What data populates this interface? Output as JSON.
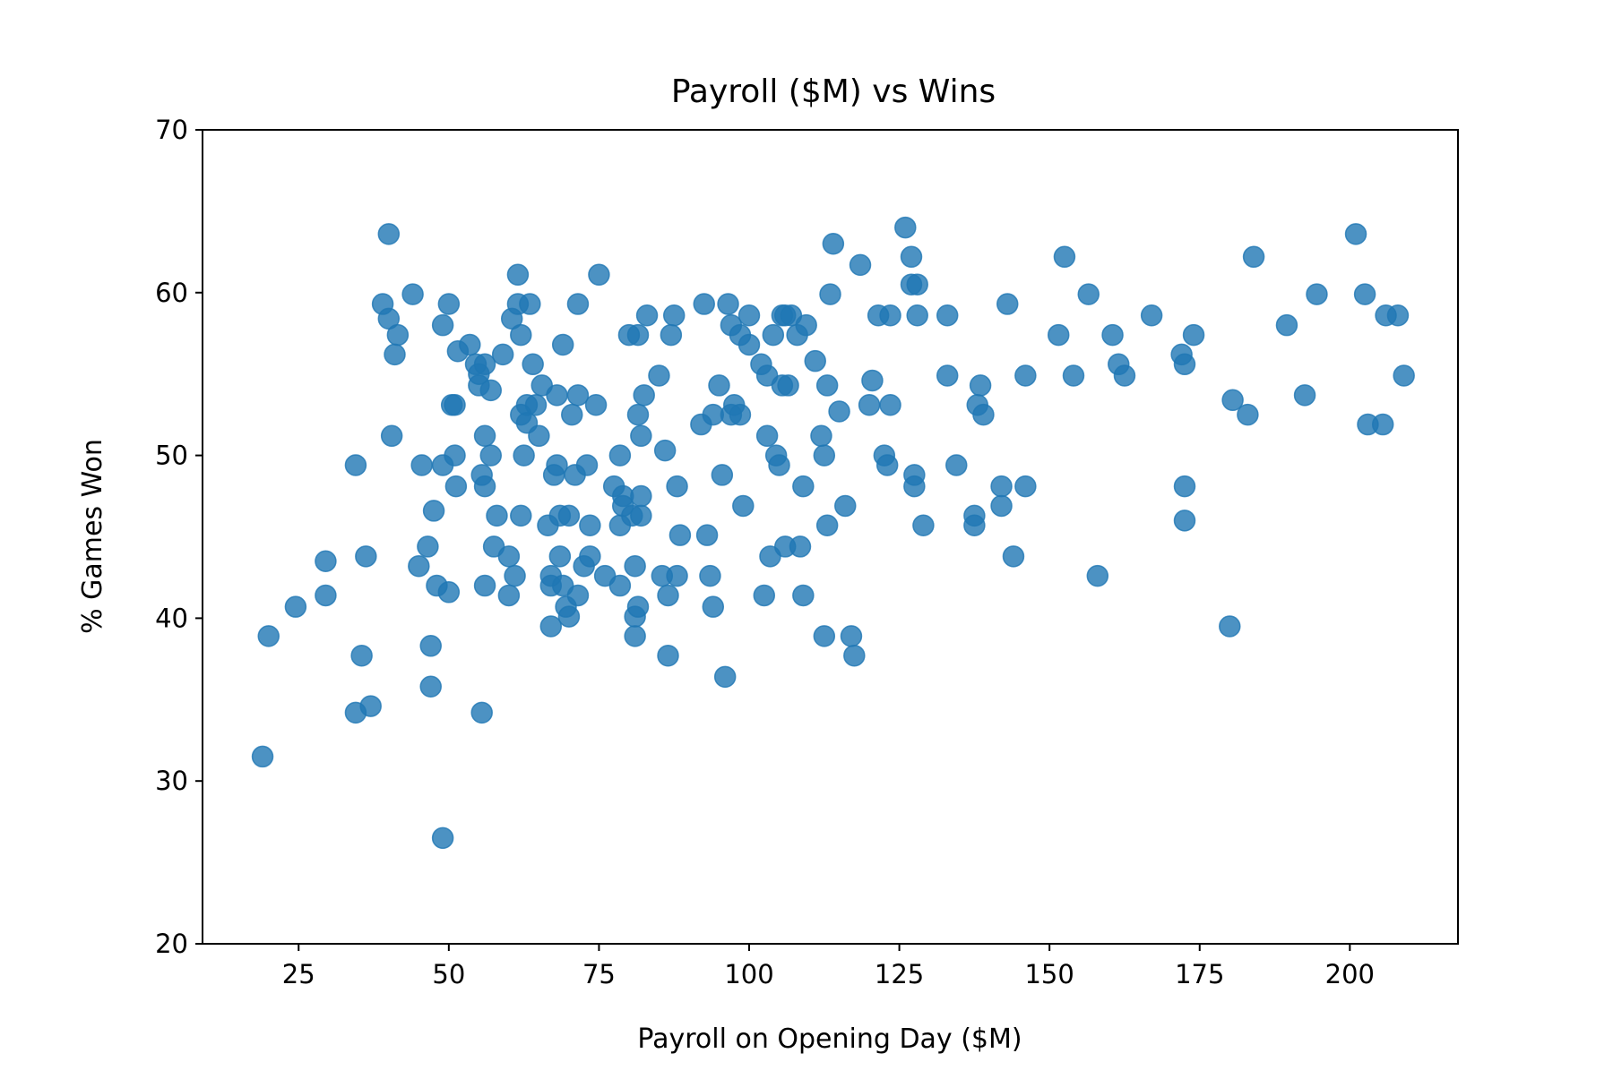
{
  "chart_data": {
    "type": "scatter",
    "title": "Payroll ($M) vs Wins",
    "xlabel": "Payroll on Opening Day ($M)",
    "ylabel": "% Games Won",
    "xlim": [
      9,
      218
    ],
    "ylim": [
      20,
      70
    ],
    "xticks": [
      25,
      50,
      75,
      100,
      125,
      150,
      175,
      200
    ],
    "yticks": [
      20,
      30,
      40,
      50,
      60,
      70
    ],
    "grid": false,
    "colors": {
      "points": "#1f77b4"
    },
    "points": [
      [
        19,
        31.5
      ],
      [
        20,
        38.9
      ],
      [
        24.5,
        40.7
      ],
      [
        29.5,
        43.5
      ],
      [
        29.5,
        41.4
      ],
      [
        34.5,
        49.4
      ],
      [
        34.5,
        34.2
      ],
      [
        35.5,
        37.7
      ],
      [
        36.2,
        43.8
      ],
      [
        37,
        34.6
      ],
      [
        39,
        59.3
      ],
      [
        40,
        58.4
      ],
      [
        40,
        63.6
      ],
      [
        40.5,
        51.2
      ],
      [
        41,
        56.2
      ],
      [
        41.5,
        57.4
      ],
      [
        44,
        59.9
      ],
      [
        45,
        43.2
      ],
      [
        45.5,
        49.4
      ],
      [
        46.5,
        44.4
      ],
      [
        47,
        38.3
      ],
      [
        47,
        35.8
      ],
      [
        47.5,
        46.6
      ],
      [
        48,
        42.0
      ],
      [
        49,
        49.4
      ],
      [
        49,
        58.0
      ],
      [
        49,
        26.5
      ],
      [
        50,
        41.6
      ],
      [
        50,
        59.3
      ],
      [
        50.5,
        53.1
      ],
      [
        51,
        53.1
      ],
      [
        51,
        50.0
      ],
      [
        51.2,
        48.1
      ],
      [
        51.5,
        56.4
      ],
      [
        53.5,
        56.8
      ],
      [
        54.5,
        55.6
      ],
      [
        55,
        55.0
      ],
      [
        55,
        54.3
      ],
      [
        55.5,
        34.2
      ],
      [
        55.5,
        48.8
      ],
      [
        56,
        48.1
      ],
      [
        56,
        51.2
      ],
      [
        56,
        55.6
      ],
      [
        56,
        42.0
      ],
      [
        57,
        54.0
      ],
      [
        57,
        50.0
      ],
      [
        57.5,
        44.4
      ],
      [
        58,
        46.3
      ],
      [
        59,
        56.2
      ],
      [
        60,
        43.8
      ],
      [
        60,
        41.4
      ],
      [
        60.5,
        58.4
      ],
      [
        61,
        42.6
      ],
      [
        61.5,
        61.1
      ],
      [
        61.5,
        59.3
      ],
      [
        62,
        57.4
      ],
      [
        62,
        52.5
      ],
      [
        62,
        46.3
      ],
      [
        62.5,
        50.0
      ],
      [
        63,
        52.0
      ],
      [
        63,
        53.1
      ],
      [
        63.5,
        59.3
      ],
      [
        64,
        55.6
      ],
      [
        64.5,
        53.1
      ],
      [
        65,
        51.2
      ],
      [
        65.5,
        54.3
      ],
      [
        66.5,
        45.7
      ],
      [
        67,
        42.6
      ],
      [
        67,
        42.0
      ],
      [
        67,
        39.5
      ],
      [
        67.5,
        48.8
      ],
      [
        68,
        49.4
      ],
      [
        68,
        53.7
      ],
      [
        68.5,
        46.3
      ],
      [
        68.5,
        43.8
      ],
      [
        69,
        56.8
      ],
      [
        69,
        42.0
      ],
      [
        69.5,
        40.7
      ],
      [
        70,
        46.3
      ],
      [
        70,
        40.1
      ],
      [
        70.5,
        52.5
      ],
      [
        71,
        48.8
      ],
      [
        71.5,
        53.7
      ],
      [
        71.5,
        41.4
      ],
      [
        71.5,
        59.3
      ],
      [
        72.5,
        43.2
      ],
      [
        73,
        49.4
      ],
      [
        73.5,
        45.7
      ],
      [
        73.5,
        43.8
      ],
      [
        74.5,
        53.1
      ],
      [
        75,
        61.1
      ],
      [
        76,
        42.6
      ],
      [
        77.5,
        48.1
      ],
      [
        78.5,
        42.0
      ],
      [
        78.5,
        50.0
      ],
      [
        78.5,
        45.7
      ],
      [
        79,
        47.5
      ],
      [
        79,
        46.9
      ],
      [
        80,
        57.4
      ],
      [
        80.5,
        46.3
      ],
      [
        81,
        43.2
      ],
      [
        81,
        40.1
      ],
      [
        81,
        38.9
      ],
      [
        81.5,
        57.4
      ],
      [
        81.5,
        52.5
      ],
      [
        81.5,
        40.7
      ],
      [
        82,
        51.2
      ],
      [
        82,
        46.3
      ],
      [
        82,
        47.5
      ],
      [
        82.5,
        53.7
      ],
      [
        83,
        58.6
      ],
      [
        85,
        54.9
      ],
      [
        85.5,
        42.6
      ],
      [
        86,
        50.3
      ],
      [
        86.5,
        41.4
      ],
      [
        86.5,
        37.7
      ],
      [
        87,
        57.4
      ],
      [
        87.5,
        58.6
      ],
      [
        88,
        48.1
      ],
      [
        88,
        42.6
      ],
      [
        88.5,
        45.1
      ],
      [
        92,
        51.9
      ],
      [
        92.5,
        59.3
      ],
      [
        93,
        45.1
      ],
      [
        93.5,
        42.6
      ],
      [
        94,
        52.5
      ],
      [
        94,
        40.7
      ],
      [
        95,
        54.3
      ],
      [
        95.5,
        48.8
      ],
      [
        96,
        36.4
      ],
      [
        96.5,
        59.3
      ],
      [
        97,
        58.0
      ],
      [
        97,
        52.5
      ],
      [
        97.5,
        53.1
      ],
      [
        98.5,
        57.4
      ],
      [
        98.5,
        52.5
      ],
      [
        99,
        46.9
      ],
      [
        100,
        58.6
      ],
      [
        100,
        56.8
      ],
      [
        102,
        55.6
      ],
      [
        102.5,
        41.4
      ],
      [
        103,
        51.2
      ],
      [
        103,
        54.9
      ],
      [
        103.5,
        43.8
      ],
      [
        104,
        57.4
      ],
      [
        104.5,
        50.0
      ],
      [
        105,
        49.4
      ],
      [
        105.5,
        58.6
      ],
      [
        105.5,
        54.3
      ],
      [
        106,
        44.4
      ],
      [
        106,
        58.6
      ],
      [
        106.5,
        54.3
      ],
      [
        107,
        58.6
      ],
      [
        108,
        57.4
      ],
      [
        108.5,
        44.4
      ],
      [
        109,
        41.4
      ],
      [
        109,
        48.1
      ],
      [
        109.5,
        58.0
      ],
      [
        111,
        55.8
      ],
      [
        112,
        51.2
      ],
      [
        112.5,
        38.9
      ],
      [
        112.5,
        50.0
      ],
      [
        113,
        54.3
      ],
      [
        113,
        45.7
      ],
      [
        113.5,
        59.9
      ],
      [
        114,
        63.0
      ],
      [
        115,
        52.7
      ],
      [
        116,
        46.9
      ],
      [
        117,
        38.9
      ],
      [
        117.5,
        37.7
      ],
      [
        118.5,
        61.7
      ],
      [
        120,
        53.1
      ],
      [
        120.5,
        54.6
      ],
      [
        121.5,
        58.6
      ],
      [
        122.5,
        50.0
      ],
      [
        123,
        49.4
      ],
      [
        123.5,
        53.1
      ],
      [
        123.5,
        58.6
      ],
      [
        126,
        64.0
      ],
      [
        127,
        60.5
      ],
      [
        127,
        62.2
      ],
      [
        127.5,
        48.8
      ],
      [
        127.5,
        48.1
      ],
      [
        128,
        60.5
      ],
      [
        128,
        58.6
      ],
      [
        129,
        45.7
      ],
      [
        133,
        54.9
      ],
      [
        133,
        58.6
      ],
      [
        134.5,
        49.4
      ],
      [
        137.5,
        46.3
      ],
      [
        137.5,
        45.7
      ],
      [
        138,
        53.1
      ],
      [
        138.5,
        54.3
      ],
      [
        139,
        52.5
      ],
      [
        142,
        48.1
      ],
      [
        142,
        46.9
      ],
      [
        143,
        59.3
      ],
      [
        144,
        43.8
      ],
      [
        146,
        54.9
      ],
      [
        146,
        48.1
      ],
      [
        151.5,
        57.4
      ],
      [
        152.5,
        62.2
      ],
      [
        154,
        54.9
      ],
      [
        156.5,
        59.9
      ],
      [
        158,
        42.6
      ],
      [
        160.5,
        57.4
      ],
      [
        161.5,
        55.6
      ],
      [
        162.5,
        54.9
      ],
      [
        167,
        58.6
      ],
      [
        172,
        56.2
      ],
      [
        172.5,
        55.6
      ],
      [
        172.5,
        48.1
      ],
      [
        172.5,
        46.0
      ],
      [
        174,
        57.4
      ],
      [
        180,
        39.5
      ],
      [
        180.5,
        53.4
      ],
      [
        183,
        52.5
      ],
      [
        184,
        62.2
      ],
      [
        189.5,
        58.0
      ],
      [
        192.5,
        53.7
      ],
      [
        194.5,
        59.9
      ],
      [
        201,
        63.6
      ],
      [
        202.5,
        59.9
      ],
      [
        203,
        51.9
      ],
      [
        205.5,
        51.9
      ],
      [
        206,
        58.6
      ],
      [
        208,
        58.6
      ],
      [
        209,
        54.9
      ]
    ]
  }
}
